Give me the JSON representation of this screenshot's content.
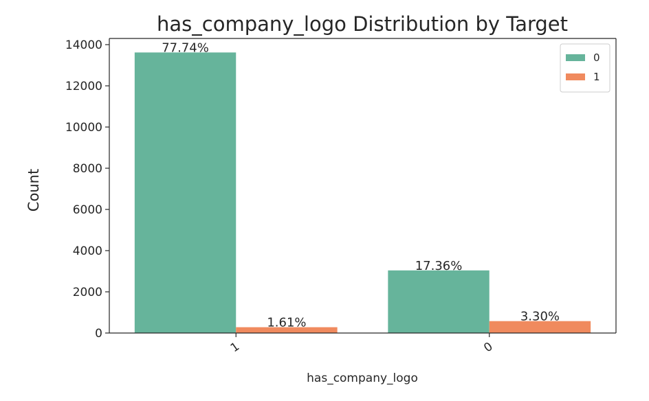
{
  "chart_data": {
    "type": "bar",
    "title": "has_company_logo Distribution by Target",
    "xlabel": "has_company_logo",
    "ylabel": "Count",
    "categories": [
      "1",
      "0"
    ],
    "series": [
      {
        "name": "0",
        "color": "#66b49b",
        "values": [
          13620,
          3040
        ],
        "labels": [
          "77.74%",
          "17.36%"
        ]
      },
      {
        "name": "1",
        "color": "#f08a5e",
        "values": [
          282,
          578
        ],
        "labels": [
          "1.61%",
          "3.30%"
        ]
      }
    ],
    "ylim": [
      0,
      14300
    ],
    "yticks": [
      0,
      2000,
      4000,
      6000,
      8000,
      10000,
      12000,
      14000
    ],
    "grid": false,
    "legend_position": "top-right"
  }
}
